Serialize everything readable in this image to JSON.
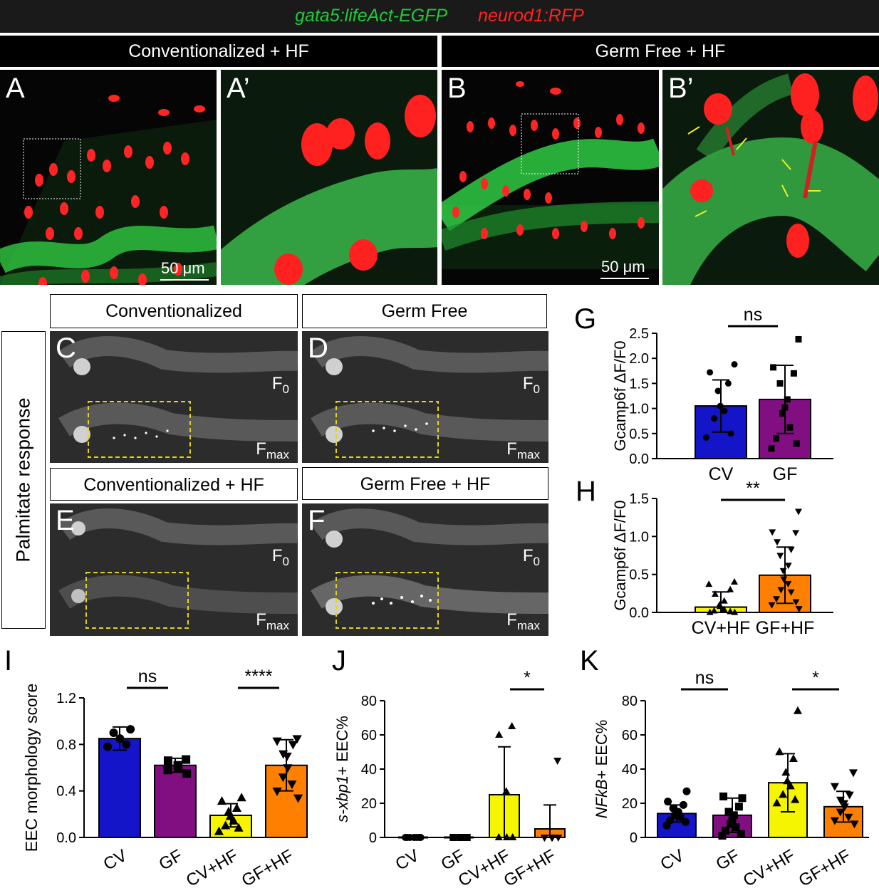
{
  "header": {
    "green_label": "gata5:lifeAct-EGFP",
    "red_label": "neurod1:RFP",
    "cond_left": "Conventionalized + HF",
    "cond_right": "Germ Free + HF"
  },
  "panels": {
    "A": "A",
    "A_prime": "A’",
    "B": "B",
    "B_prime": "B’",
    "C": "C",
    "D": "D",
    "E": "E",
    "F": "F",
    "G": "G",
    "H": "H",
    "I": "I",
    "J": "J",
    "K": "K"
  },
  "scale_bar": "50 μm",
  "calcium": {
    "side_label": "Palmitate response",
    "headers": [
      "Conventionalized",
      "Germ Free",
      "Conventionalized + HF",
      "Germ Free + HF"
    ],
    "f0": "F",
    "f0_sub": "0",
    "fmax": "F",
    "fmax_sub": "max"
  },
  "colors": {
    "CV": "#1414c8",
    "GF": "#820f82",
    "CV_HF": "#f5f500",
    "GF_HF": "#ff7f00",
    "egfp_green": "#22c83c",
    "rfp_red": "#ff2020",
    "roi_yellow": "#e6d21e"
  },
  "chart_data": [
    {
      "panel": "G",
      "type": "bar",
      "categories": [
        "CV",
        "GF"
      ],
      "values": [
        1.05,
        1.18
      ],
      "error": [
        0.52,
        0.68
      ],
      "points": [
        [
          1.88,
          1.72,
          1.5,
          1.35,
          1.05,
          0.95,
          0.8,
          0.5,
          0.42
        ],
        [
          2.38,
          1.82,
          1.7,
          1.5,
          1.18,
          1.02,
          0.9,
          0.62,
          0.4,
          0.3,
          0.2
        ]
      ],
      "ylabel": "Gcamp6f ΔF/F0",
      "ylim": [
        0,
        2.5
      ],
      "yticks": [
        "0.0",
        "0.5",
        "1.0",
        "1.5",
        "2.0",
        "2.5"
      ],
      "significance": "ns"
    },
    {
      "panel": "H",
      "type": "bar",
      "categories": [
        "CV+HF",
        "GF+HF"
      ],
      "values": [
        0.07,
        0.49
      ],
      "error": [
        0.2,
        0.37
      ],
      "points": [
        [
          0.4,
          0.37,
          0.3,
          0.24,
          0.15,
          0.1,
          0.08,
          0.04,
          0.02,
          0.01,
          0.0,
          0.0
        ],
        [
          1.33,
          1.06,
          1.05,
          0.93,
          0.83,
          0.75,
          0.62,
          0.55,
          0.44,
          0.38,
          0.3,
          0.27,
          0.18,
          0.14,
          0.1,
          0.05
        ]
      ],
      "ylabel": "Gcamp6f ΔF/F0",
      "ylim": [
        0,
        1.5
      ],
      "yticks": [
        "0.0",
        "0.5",
        "1.0",
        "1.5"
      ],
      "significance": "**"
    },
    {
      "panel": "I",
      "type": "bar",
      "categories": [
        "CV",
        "GF",
        "CV+HF",
        "GF+HF"
      ],
      "values": [
        0.85,
        0.62,
        0.19,
        0.62
      ],
      "error": [
        0.1,
        0.06,
        0.1,
        0.22
      ],
      "points": [
        [
          0.93,
          0.9,
          0.85,
          0.8,
          0.78
        ],
        [
          0.67,
          0.66,
          0.62,
          0.6,
          0.58,
          0.55
        ],
        [
          0.34,
          0.31,
          0.25,
          0.22,
          0.18,
          0.14,
          0.1,
          0.08,
          0.05
        ],
        [
          0.85,
          0.83,
          0.8,
          0.72,
          0.7,
          0.6,
          0.52,
          0.46,
          0.4,
          0.34
        ]
      ],
      "ylabel": "EEC morphology score",
      "ylim": [
        0,
        1.2
      ],
      "yticks": [
        "0.0",
        "0.4",
        "0.8",
        "1.2"
      ],
      "significance": [
        {
          "pair": [
            0,
            1
          ],
          "label": "ns"
        },
        {
          "pair": [
            2,
            3
          ],
          "label": "****"
        }
      ]
    },
    {
      "panel": "J",
      "type": "bar",
      "categories": [
        "CV",
        "GF",
        "CV+HF",
        "GF+HF"
      ],
      "values": [
        0,
        0,
        25,
        5
      ],
      "error": [
        0,
        0,
        28,
        14
      ],
      "points": [
        [
          0,
          0,
          0,
          0,
          0,
          0,
          0
        ],
        [
          0,
          0,
          0,
          0,
          0,
          0
        ],
        [
          65,
          60,
          27,
          0,
          0,
          0
        ],
        [
          45,
          0,
          0,
          0,
          0,
          0
        ]
      ],
      "ylabel_italic": "s-xbp1",
      "ylabel_rest": "+ EEC%",
      "ylim": [
        0,
        80
      ],
      "yticks": [
        "0",
        "20",
        "40",
        "60",
        "80"
      ],
      "significance": [
        {
          "pair": [
            2,
            3
          ],
          "label": "*"
        }
      ]
    },
    {
      "panel": "K",
      "type": "bar",
      "categories": [
        "CV",
        "GF",
        "CV+HF",
        "GF+HF"
      ],
      "values": [
        14,
        13,
        32,
        18
      ],
      "error": [
        5,
        10,
        17,
        9
      ],
      "points": [
        [
          27,
          21,
          19,
          17,
          15,
          14,
          13,
          12,
          10,
          9,
          7
        ],
        [
          23,
          24,
          18,
          15,
          13,
          10,
          8,
          6,
          4,
          2,
          1
        ],
        [
          74,
          50,
          46,
          38,
          33,
          30,
          25,
          22,
          20
        ],
        [
          38,
          30,
          25,
          22,
          20,
          18,
          15,
          12,
          10,
          8
        ]
      ],
      "ylabel_italic": "NFkB",
      "ylabel_rest": "+ EEC%",
      "ylim": [
        0,
        80
      ],
      "yticks": [
        "0",
        "20",
        "40",
        "60",
        "80"
      ],
      "significance": [
        {
          "pair": [
            0,
            1
          ],
          "label": "ns"
        },
        {
          "pair": [
            2,
            3
          ],
          "label": "*"
        }
      ]
    }
  ]
}
